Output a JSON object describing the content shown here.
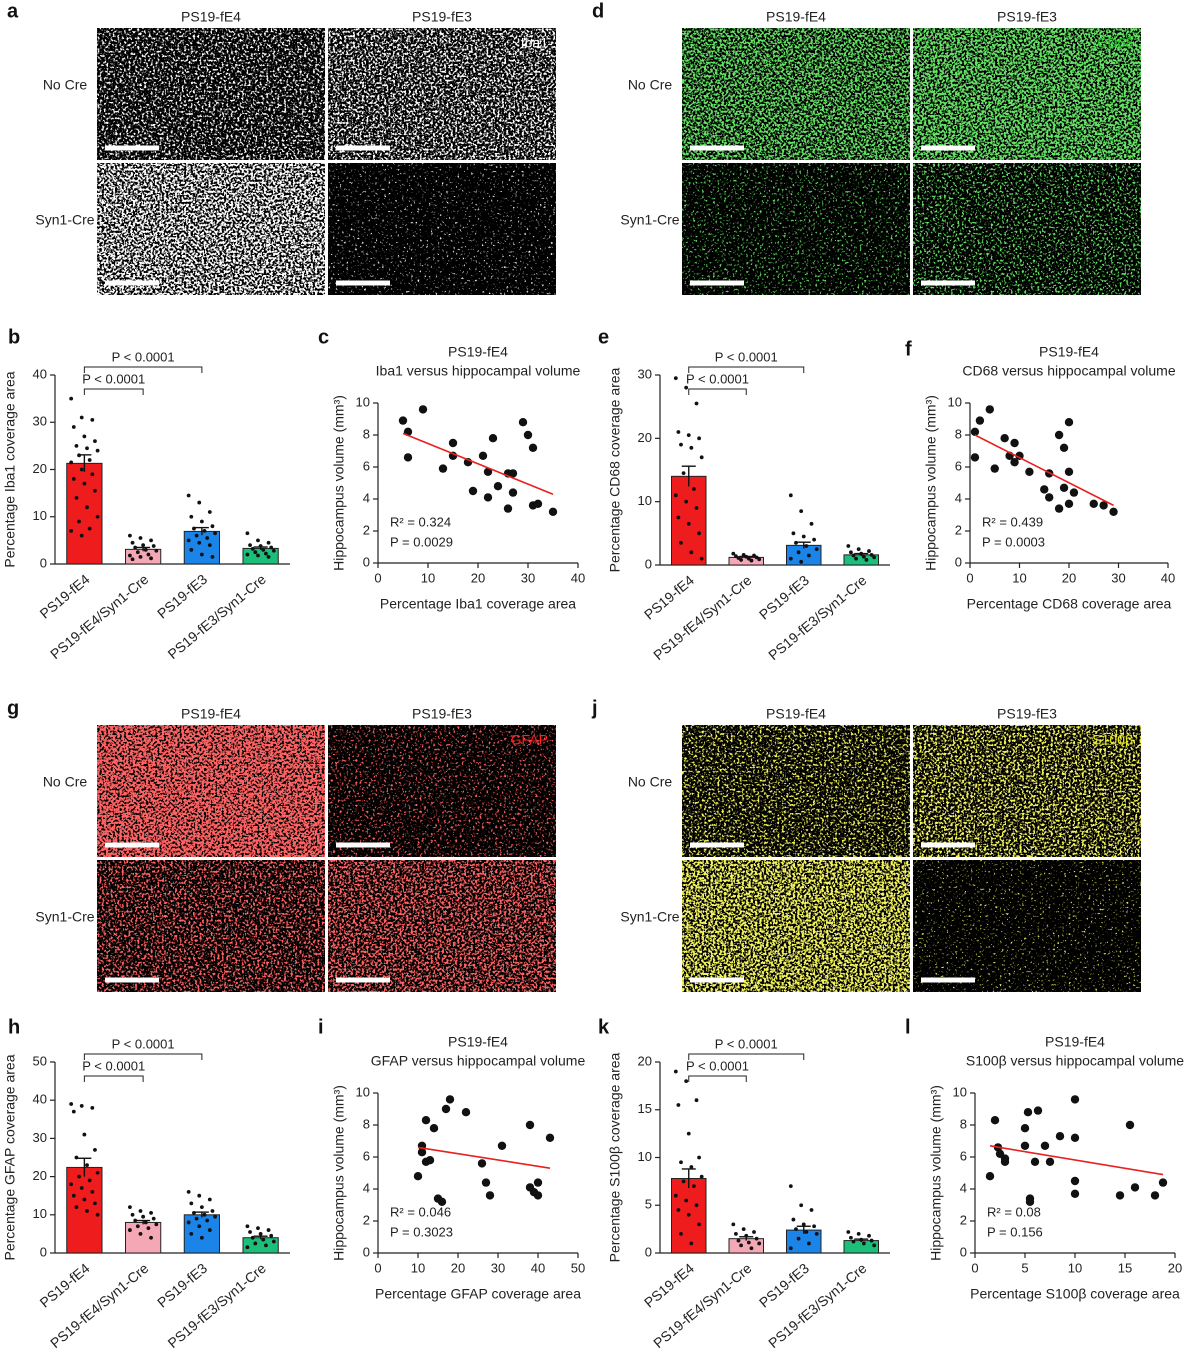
{
  "image_panels": [
    {
      "letter": "a",
      "columns": [
        "PS19-fE4",
        "PS19-fE3"
      ],
      "rows": [
        "No Cre",
        "Syn1-Cre"
      ],
      "stain": "Iba1",
      "color": "#ffffff"
    },
    {
      "letter": "d",
      "columns": [
        "PS19-fE4",
        "PS19-fE3"
      ],
      "rows": [
        "No Cre",
        "Syn1-Cre"
      ],
      "stain": "CD68",
      "color": "#22c322"
    },
    {
      "letter": "g",
      "columns": [
        "PS19-fE4",
        "PS19-fE3"
      ],
      "rows": [
        "No Cre",
        "Syn1-Cre"
      ],
      "stain": "GFAP",
      "color": "#ff2020"
    },
    {
      "letter": "j",
      "columns": [
        "PS19-fE4",
        "PS19-fE3"
      ],
      "rows": [
        "No Cre",
        "Syn1-Cre"
      ],
      "stain": "S100β",
      "color": "#e6e61e"
    }
  ],
  "chart_data": [
    {
      "type": "bar",
      "panel": "b",
      "ylabel": "Percentage Iba1 coverage area",
      "categories": [
        "PS19-fE4",
        "PS19-fE4/Syn1-Cre",
        "PS19-fE3",
        "PS19-fE3/Syn1-Cre"
      ],
      "colors": [
        "#ee1c1c",
        "#f4a7b5",
        "#1a84e8",
        "#1bbf7a"
      ],
      "values": [
        21.3,
        3.1,
        6.9,
        3.3
      ],
      "errors": [
        1.8,
        0.4,
        0.8,
        0.3
      ],
      "points": [
        [
          35,
          31,
          30.5,
          29,
          27,
          26,
          25,
          24.5,
          24,
          23,
          22,
          21.5,
          20,
          19,
          18,
          17,
          15.5,
          14,
          12,
          10,
          9,
          7.5,
          7,
          6
        ],
        [
          6,
          5.5,
          5,
          4.5,
          4,
          3.8,
          3.5,
          3,
          2.8,
          2.5,
          2,
          1.8,
          1.5,
          1.2,
          1
        ],
        [
          14.5,
          13,
          11,
          10,
          9,
          8,
          7.5,
          7,
          6.5,
          6,
          5.5,
          5,
          4.5,
          4,
          3,
          2,
          1.5
        ],
        [
          6.5,
          5,
          4.5,
          4,
          3.8,
          3.5,
          3.2,
          3,
          2.8,
          2.5,
          2.2,
          2,
          1.8,
          1.5
        ]
      ],
      "comparisons": [
        {
          "label": "P < 0.0001",
          "between": [
            "PS19-fE4",
            "PS19-fE4/Syn1-Cre"
          ]
        },
        {
          "label": "P < 0.0001",
          "between": [
            "PS19-fE4",
            "PS19-fE3"
          ]
        }
      ],
      "ylim": [
        0,
        40
      ],
      "yticks": [
        0,
        10,
        20,
        30,
        40
      ]
    },
    {
      "type": "scatter",
      "panel": "c",
      "title": "PS19-fE4",
      "subtitle": "Iba1 versus hippocampal volume",
      "xlabel": "Percentage Iba1 coverage area",
      "ylabel": "Hippocampus volume (mm³)",
      "x": [
        5,
        6,
        6,
        9,
        13,
        15,
        15,
        18,
        19,
        21,
        22,
        22,
        23,
        24,
        26,
        26,
        27,
        27,
        29,
        30,
        31,
        31,
        32,
        35
      ],
      "y": [
        8.9,
        8.2,
        6.6,
        9.6,
        5.9,
        7.5,
        6.7,
        6.3,
        4.5,
        6.7,
        5.7,
        4.1,
        7.8,
        4.8,
        3.4,
        5.6,
        5.6,
        4.4,
        8.8,
        8.0,
        3.6,
        7.2,
        3.7,
        3.2
      ],
      "fit": {
        "x": [
          5,
          35
        ],
        "y": [
          8.1,
          4.3
        ],
        "color": "#e8201e"
      },
      "annotations": [
        "R² = 0.324",
        "P = 0.0029"
      ],
      "xlim": [
        0,
        40
      ],
      "xticks": [
        0,
        10,
        20,
        30,
        40
      ],
      "ylim": [
        0,
        10
      ],
      "yticks": [
        0,
        2,
        4,
        6,
        8,
        10
      ]
    },
    {
      "type": "bar",
      "panel": "e",
      "ylabel": "Percentage CD68 coverage area",
      "categories": [
        "PS19-fE4",
        "PS19-fE4/Syn1-Cre",
        "PS19-fE3",
        "PS19-fE3/Syn1-Cre"
      ],
      "colors": [
        "#ee1c1c",
        "#f4a7b5",
        "#1a84e8",
        "#1bbf7a"
      ],
      "values": [
        14,
        1.2,
        3.1,
        1.6
      ],
      "errors": [
        1.6,
        0.15,
        0.5,
        0.2
      ],
      "points": [
        [
          29.5,
          28,
          25.5,
          21,
          20.5,
          20,
          19,
          18.5,
          17,
          14.5,
          12,
          11,
          10,
          9,
          7.5,
          6.5,
          5,
          3.5,
          2,
          1
        ],
        [
          1.8,
          1.6,
          1.5,
          1.4,
          1.3,
          1.2,
          1.1,
          1,
          0.9,
          0.8,
          0.7
        ],
        [
          11,
          8.5,
          6.5,
          5,
          4.5,
          4,
          3.5,
          3,
          2.5,
          2,
          1.5,
          1,
          0.5
        ],
        [
          3,
          2.5,
          2.2,
          2,
          1.8,
          1.6,
          1.5,
          1.3,
          1.2,
          1,
          0.8
        ]
      ],
      "comparisons": [
        {
          "label": "P < 0.0001",
          "between": [
            "PS19-fE4",
            "PS19-fE4/Syn1-Cre"
          ]
        },
        {
          "label": "P < 0.0001",
          "between": [
            "PS19-fE4",
            "PS19-fE3"
          ]
        }
      ],
      "ylim": [
        0,
        30
      ],
      "yticks": [
        0,
        10,
        20,
        30
      ]
    },
    {
      "type": "scatter",
      "panel": "f",
      "title": "PS19-fE4",
      "subtitle": "CD68 versus hippocampal volume",
      "xlabel": "Percentage CD68 coverage area",
      "ylabel": "Hippocampus volume (mm³)",
      "x": [
        1,
        1,
        2,
        4,
        5,
        7,
        8,
        9,
        9,
        10,
        12,
        15,
        16,
        16,
        18,
        18,
        19,
        19,
        20,
        20,
        20,
        21,
        25,
        27,
        29
      ],
      "y": [
        8.2,
        6.6,
        8.9,
        9.6,
        5.9,
        7.8,
        6.7,
        7.5,
        6.3,
        6.7,
        5.7,
        4.6,
        4.1,
        5.6,
        8.0,
        3.4,
        4.7,
        7.2,
        3.7,
        5.7,
        8.8,
        4.4,
        3.7,
        3.6,
        3.2
      ],
      "fit": {
        "x": [
          1,
          29
        ],
        "y": [
          8.0,
          3.6
        ],
        "color": "#e8201e"
      },
      "annotations": [
        "R² = 0.439",
        "P = 0.0003"
      ],
      "xlim": [
        0,
        40
      ],
      "xticks": [
        0,
        10,
        20,
        30,
        40
      ],
      "ylim": [
        0,
        10
      ],
      "yticks": [
        0,
        2,
        4,
        6,
        8,
        10
      ]
    },
    {
      "type": "bar",
      "panel": "h",
      "ylabel": "Percentage GFAP coverage area",
      "categories": [
        "PS19-fE4",
        "PS19-fE4/Syn1-Cre",
        "PS19-fE3",
        "PS19-fE3/Syn1-Cre"
      ],
      "colors": [
        "#ee1c1c",
        "#f4a7b5",
        "#1a84e8",
        "#1bbf7a"
      ],
      "values": [
        22.4,
        8,
        10,
        4
      ],
      "errors": [
        2.4,
        0.5,
        0.7,
        0.4
      ],
      "points": [
        [
          39,
          38.5,
          38,
          37,
          31,
          27,
          25,
          23,
          21,
          20,
          19,
          18,
          17,
          16,
          15,
          14,
          13,
          12,
          11,
          10
        ],
        [
          12,
          11,
          10.5,
          10,
          9.5,
          9,
          8.5,
          8,
          7.5,
          7,
          6.5,
          6,
          5,
          4
        ],
        [
          16,
          15,
          14,
          13,
          12,
          11,
          10.5,
          10,
          9.5,
          9,
          8.5,
          8,
          7,
          6,
          5,
          4
        ],
        [
          7,
          6.5,
          6,
          5.5,
          5,
          4.5,
          4,
          3.5,
          3,
          2.5,
          2,
          1.5
        ]
      ],
      "comparisons": [
        {
          "label": "P < 0.0001",
          "between": [
            "PS19-fE4",
            "PS19-fE4/Syn1-Cre"
          ]
        },
        {
          "label": "P < 0.0001",
          "between": [
            "PS19-fE4",
            "PS19-fE3"
          ]
        }
      ],
      "ylim": [
        0,
        50
      ],
      "yticks": [
        0,
        10,
        20,
        30,
        40,
        50
      ]
    },
    {
      "type": "scatter",
      "panel": "i",
      "title": "PS19-fE4",
      "subtitle": "GFAP versus hippocampal volume",
      "xlabel": "Percentage GFAP coverage area",
      "ylabel": "Hippocampus volume (mm³)",
      "x": [
        10,
        11,
        11,
        12,
        12,
        13,
        14,
        15,
        16,
        17,
        18,
        22,
        26,
        27,
        28,
        31,
        38,
        38,
        39,
        40,
        40,
        43
      ],
      "y": [
        4.8,
        6.7,
        6.3,
        8.3,
        5.7,
        5.8,
        7.8,
        3.4,
        3.2,
        9.0,
        9.6,
        8.8,
        5.6,
        4.4,
        3.6,
        6.7,
        8.0,
        4.1,
        3.8,
        3.6,
        4.4,
        7.2
      ],
      "fit": {
        "x": [
          10,
          43
        ],
        "y": [
          6.6,
          5.3
        ],
        "color": "#e8201e"
      },
      "annotations": [
        "R² = 0.046",
        "P = 0.3023"
      ],
      "xlim": [
        0,
        50
      ],
      "xticks": [
        0,
        10,
        20,
        30,
        40,
        50
      ],
      "ylim": [
        0,
        10
      ],
      "yticks": [
        0,
        2,
        4,
        6,
        8,
        10
      ]
    },
    {
      "type": "bar",
      "panel": "k",
      "ylabel": "Percentage S100β coverage area",
      "categories": [
        "PS19-fE4",
        "PS19-fE4/Syn1-Cre",
        "PS19-fE3",
        "PS19-fE3/Syn1-Cre"
      ],
      "colors": [
        "#ee1c1c",
        "#f4a7b5",
        "#1a84e8",
        "#1bbf7a"
      ],
      "values": [
        7.8,
        1.5,
        2.4,
        1.3
      ],
      "errors": [
        1.0,
        0.2,
        0.4,
        0.15
      ],
      "points": [
        [
          19,
          18,
          16,
          15.5,
          12.5,
          10,
          9.5,
          9,
          8,
          7.5,
          7,
          6,
          5.5,
          5,
          4.5,
          4,
          3,
          2,
          1
        ],
        [
          3,
          2.5,
          2.2,
          2,
          1.8,
          1.5,
          1.3,
          1.1,
          1,
          0.8,
          0.5
        ],
        [
          7,
          5,
          4.5,
          3.5,
          3,
          2.8,
          2.5,
          2.2,
          2,
          1.5,
          1,
          0.5
        ],
        [
          2.2,
          2,
          1.8,
          1.6,
          1.4,
          1.3,
          1.2,
          1,
          0.8
        ]
      ],
      "comparisons": [
        {
          "label": "P < 0.0001",
          "between": [
            "PS19-fE4",
            "PS19-fE4/Syn1-Cre"
          ]
        },
        {
          "label": "P < 0.0001",
          "between": [
            "PS19-fE4",
            "PS19-fE3"
          ]
        }
      ],
      "ylim": [
        0,
        20
      ],
      "yticks": [
        0,
        5,
        10,
        15,
        20
      ]
    },
    {
      "type": "scatter",
      "panel": "l",
      "title": "PS19-fE4",
      "subtitle": "S100β versus hippocampal volume",
      "xlabel": "Percentage S100β coverage area",
      "ylabel": "Hippocampus volume (mm³)",
      "x": [
        1.5,
        2,
        2.3,
        2.5,
        3,
        3,
        5,
        5,
        5.3,
        5.5,
        5.5,
        6,
        6.3,
        7,
        7.5,
        8.5,
        10,
        10,
        10,
        10,
        14.5,
        15.5,
        16,
        18,
        18.8
      ],
      "y": [
        4.8,
        8.3,
        6.6,
        6.2,
        5.9,
        5.7,
        6.7,
        7.8,
        8.8,
        3.4,
        3.2,
        5.7,
        8.9,
        6.7,
        5.7,
        7.3,
        9.6,
        7.2,
        4.5,
        3.7,
        3.6,
        8.0,
        4.1,
        3.6,
        4.4
      ],
      "fit": {
        "x": [
          1.5,
          18.8
        ],
        "y": [
          6.7,
          4.9
        ],
        "color": "#e8201e"
      },
      "annotations": [
        "R² = 0.08",
        "P = 0.156"
      ],
      "xlim": [
        0,
        20
      ],
      "xticks": [
        0,
        5,
        10,
        15,
        20
      ],
      "ylim": [
        0,
        10
      ],
      "yticks": [
        0,
        2,
        4,
        6,
        8,
        10
      ]
    }
  ]
}
